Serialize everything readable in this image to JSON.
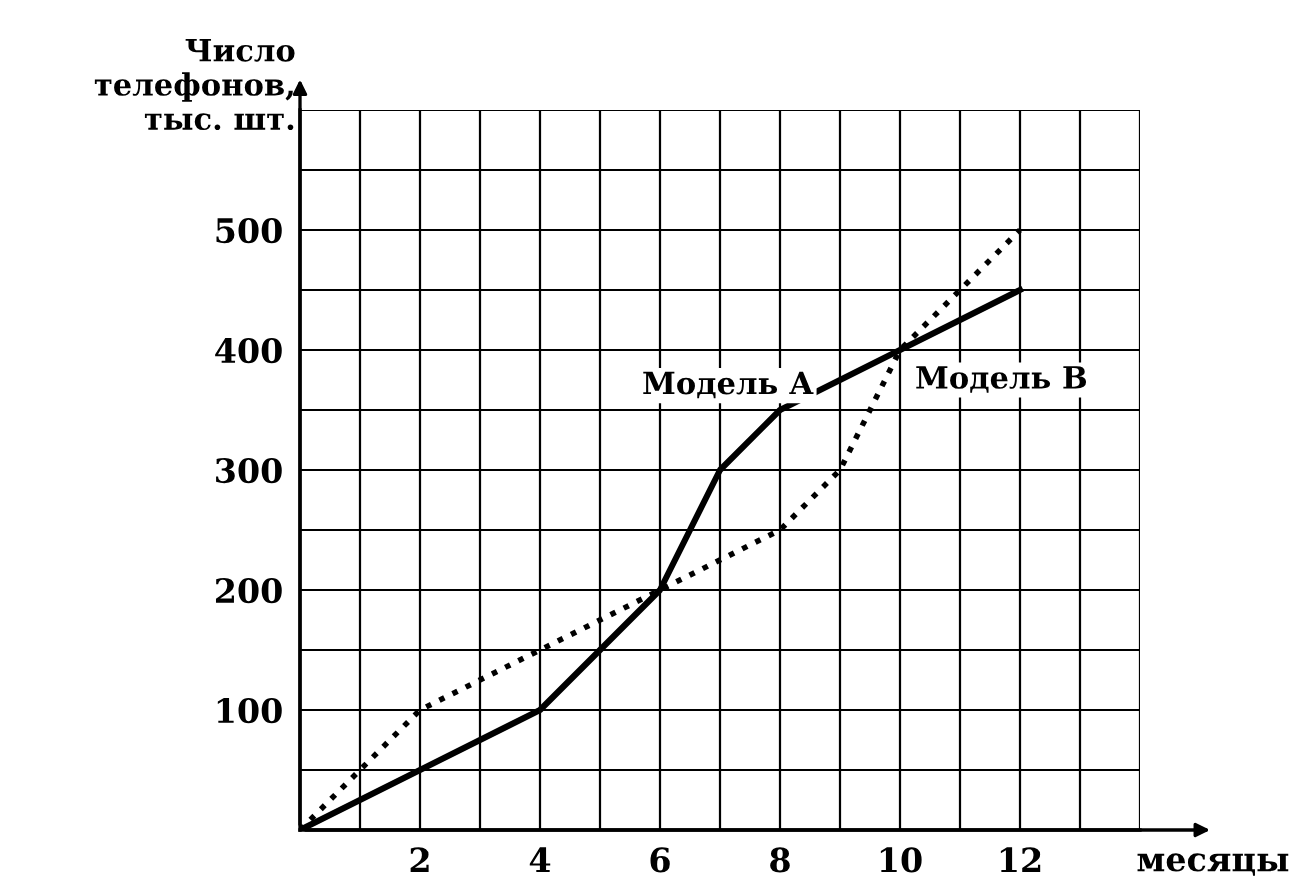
{
  "chart_data": {
    "type": "line",
    "xlabel": "месяцы",
    "ylabel": "Число\nтелефонов,\nтыс. шт.",
    "x": [
      0,
      2,
      4,
      6,
      7,
      8,
      9,
      10,
      12
    ],
    "series": [
      {
        "name": "Модель А",
        "color": "#000000",
        "line_style": "solid",
        "values": [
          0,
          50,
          100,
          200,
          300,
          350,
          null,
          400,
          450
        ]
      },
      {
        "name": "Модель В",
        "color": "#000000",
        "line_style": "dotted",
        "values": [
          0,
          100,
          150,
          200,
          null,
          250,
          300,
          400,
          500
        ]
      }
    ],
    "xlim": [
      0,
      14
    ],
    "ylim": [
      0,
      600
    ],
    "xticks": [
      {
        "value": 1,
        "label": null
      },
      2,
      {
        "value": 3,
        "label": null
      },
      4,
      {
        "value": 5,
        "label": null
      },
      6,
      {
        "value": 7,
        "label": null
      },
      8,
      {
        "value": 9,
        "label": null
      },
      10,
      {
        "value": 11,
        "label": null
      },
      12,
      {
        "value": 13,
        "label": null
      },
      {
        "value": 14,
        "label": null
      }
    ],
    "yticks": [
      {
        "value": 50,
        "label": null
      },
      100,
      {
        "value": 150,
        "label": null
      },
      200,
      {
        "value": 250,
        "label": null
      },
      300,
      {
        "value": 350,
        "label": null
      },
      400,
      {
        "value": 450,
        "label": null
      },
      500,
      {
        "value": 550,
        "label": null
      },
      {
        "value": 600,
        "label": null
      }
    ],
    "grid": true,
    "legend": false,
    "marker": "none"
  }
}
